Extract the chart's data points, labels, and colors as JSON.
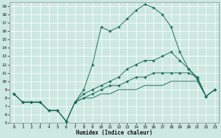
{
  "xlabel": "Humidex (Indice chaleur)",
  "bg_color": "#cce8e0",
  "grid_color": "#ffffff",
  "line_color": "#1a6b5a",
  "xlim": [
    -0.5,
    23.5
  ],
  "ylim": [
    5,
    19.5
  ],
  "xticks": [
    0,
    1,
    2,
    3,
    4,
    5,
    6,
    7,
    8,
    9,
    10,
    11,
    12,
    13,
    14,
    15,
    16,
    17,
    18,
    19,
    20,
    21,
    22,
    23
  ],
  "yticks": [
    5,
    6,
    7,
    8,
    9,
    10,
    11,
    12,
    13,
    14,
    15,
    16,
    17,
    18,
    19
  ],
  "curve1_x": [
    0,
    1,
    2,
    3,
    4,
    5,
    6,
    7,
    8,
    9,
    10,
    11,
    12,
    13,
    14,
    15,
    16,
    17,
    18,
    19,
    20,
    21,
    22,
    23
  ],
  "curve1_y": [
    8.5,
    7.5,
    7.5,
    7.5,
    6.5,
    6.5,
    5.2,
    7.5,
    9.0,
    12.0,
    16.5,
    16.0,
    16.5,
    17.5,
    18.5,
    19.2,
    18.8,
    18.0,
    16.5,
    13.5,
    11.5,
    10.2,
    8.2,
    9.0
  ],
  "curve2_x": [
    0,
    1,
    2,
    3,
    4,
    5,
    6,
    7,
    8,
    9,
    10,
    11,
    12,
    13,
    14,
    15,
    16,
    17,
    18,
    19,
    20,
    21,
    22,
    23
  ],
  "curve2_y": [
    8.5,
    7.5,
    7.5,
    7.5,
    6.5,
    6.5,
    5.2,
    7.5,
    8.5,
    9.0,
    9.5,
    10.0,
    10.5,
    11.5,
    12.0,
    12.5,
    12.5,
    13.0,
    13.5,
    12.5,
    11.5,
    10.5,
    8.2,
    9.0
  ],
  "curve3_x": [
    0,
    1,
    2,
    3,
    4,
    5,
    6,
    7,
    8,
    9,
    10,
    11,
    12,
    13,
    14,
    15,
    16,
    17,
    18,
    19,
    20,
    21,
    22,
    23
  ],
  "curve3_y": [
    8.5,
    7.5,
    7.5,
    7.5,
    6.5,
    6.5,
    5.2,
    7.5,
    8.0,
    8.5,
    9.0,
    9.5,
    9.5,
    10.0,
    10.5,
    10.5,
    11.0,
    11.0,
    11.0,
    11.0,
    11.0,
    10.5,
    8.2,
    9.0
  ],
  "curve4_x": [
    0,
    1,
    2,
    3,
    4,
    5,
    6,
    7,
    8,
    9,
    10,
    11,
    12,
    13,
    14,
    15,
    16,
    17,
    18,
    19,
    20,
    21,
    22,
    23
  ],
  "curve4_y": [
    8.5,
    7.5,
    7.5,
    7.5,
    6.5,
    6.5,
    5.2,
    7.5,
    8.0,
    8.0,
    8.5,
    8.5,
    9.0,
    9.0,
    9.0,
    9.5,
    9.5,
    9.5,
    10.0,
    10.0,
    10.0,
    10.0,
    8.2,
    9.0
  ]
}
